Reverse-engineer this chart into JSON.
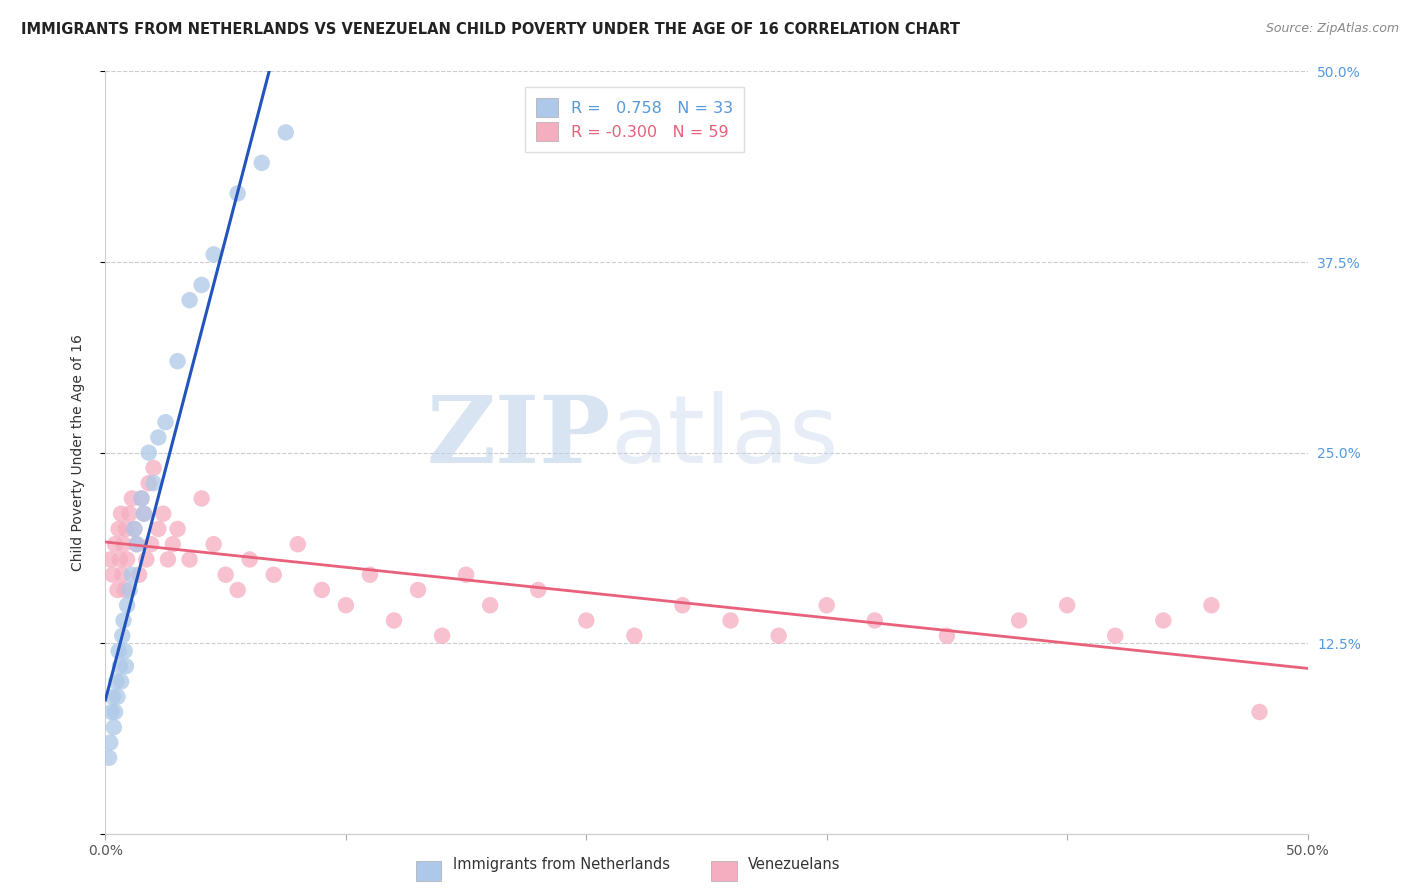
{
  "title": "IMMIGRANTS FROM NETHERLANDS VS VENEZUELAN CHILD POVERTY UNDER THE AGE OF 16 CORRELATION CHART",
  "source": "Source: ZipAtlas.com",
  "ylabel": "Child Poverty Under the Age of 16",
  "xlim": [
    0.0,
    50.0
  ],
  "ylim": [
    0.0,
    50.0
  ],
  "yticks": [
    0.0,
    12.5,
    25.0,
    37.5,
    50.0
  ],
  "ytick_labels_right": [
    "",
    "12.5%",
    "25.0%",
    "37.5%",
    "50.0%"
  ],
  "xticks": [
    0.0,
    10.0,
    20.0,
    30.0,
    40.0,
    50.0
  ],
  "xtick_labels": [
    "0.0%",
    "",
    "",
    "",
    "",
    "50.0%"
  ],
  "blue_color": "#adc8e8",
  "pink_color": "#f5adc0",
  "blue_line_color": "#2255bb",
  "pink_line_color": "#e8607a",
  "blue_R": 0.758,
  "blue_N": 33,
  "pink_R": -0.3,
  "pink_N": 59,
  "legend_label_blue": "Immigrants from Netherlands",
  "legend_label_pink": "Venezuelans",
  "watermark_zip": "ZIP",
  "watermark_atlas": "atlas",
  "title_color": "#222222",
  "source_color": "#888888",
  "right_axis_color": "#5599dd",
  "grid_color": "#cccccc",
  "blue_scatter_x": [
    0.15,
    0.2,
    0.25,
    0.3,
    0.35,
    0.4,
    0.45,
    0.5,
    0.55,
    0.6,
    0.65,
    0.7,
    0.75,
    0.8,
    0.85,
    0.9,
    1.0,
    1.1,
    1.2,
    1.3,
    1.5,
    1.6,
    1.8,
    2.0,
    2.2,
    2.5,
    3.0,
    3.5,
    4.0,
    4.5,
    5.5,
    6.5,
    7.5
  ],
  "blue_scatter_y": [
    5.0,
    6.0,
    8.0,
    9.0,
    7.0,
    8.0,
    10.0,
    9.0,
    12.0,
    11.0,
    10.0,
    13.0,
    14.0,
    12.0,
    11.0,
    15.0,
    16.0,
    17.0,
    20.0,
    19.0,
    22.0,
    21.0,
    25.0,
    23.0,
    26.0,
    27.0,
    31.0,
    35.0,
    36.0,
    38.0,
    42.0,
    44.0,
    46.0
  ],
  "pink_scatter_x": [
    0.2,
    0.3,
    0.4,
    0.5,
    0.55,
    0.6,
    0.65,
    0.7,
    0.75,
    0.8,
    0.85,
    0.9,
    1.0,
    1.1,
    1.2,
    1.3,
    1.4,
    1.5,
    1.6,
    1.7,
    1.8,
    1.9,
    2.0,
    2.2,
    2.4,
    2.6,
    2.8,
    3.0,
    3.5,
    4.0,
    4.5,
    5.0,
    5.5,
    6.0,
    7.0,
    8.0,
    9.0,
    10.0,
    11.0,
    12.0,
    13.0,
    14.0,
    15.0,
    16.0,
    18.0,
    20.0,
    22.0,
    24.0,
    26.0,
    28.0,
    30.0,
    32.0,
    35.0,
    38.0,
    40.0,
    42.0,
    44.0,
    46.0,
    48.0
  ],
  "pink_scatter_y": [
    18.0,
    17.0,
    19.0,
    16.0,
    20.0,
    18.0,
    21.0,
    17.0,
    19.0,
    16.0,
    20.0,
    18.0,
    21.0,
    22.0,
    20.0,
    19.0,
    17.0,
    22.0,
    21.0,
    18.0,
    23.0,
    19.0,
    24.0,
    20.0,
    21.0,
    18.0,
    19.0,
    20.0,
    18.0,
    22.0,
    19.0,
    17.0,
    16.0,
    18.0,
    17.0,
    19.0,
    16.0,
    15.0,
    17.0,
    14.0,
    16.0,
    13.0,
    17.0,
    15.0,
    16.0,
    14.0,
    13.0,
    15.0,
    14.0,
    13.0,
    15.0,
    14.0,
    13.0,
    14.0,
    15.0,
    13.0,
    14.0,
    15.0,
    8.0
  ]
}
